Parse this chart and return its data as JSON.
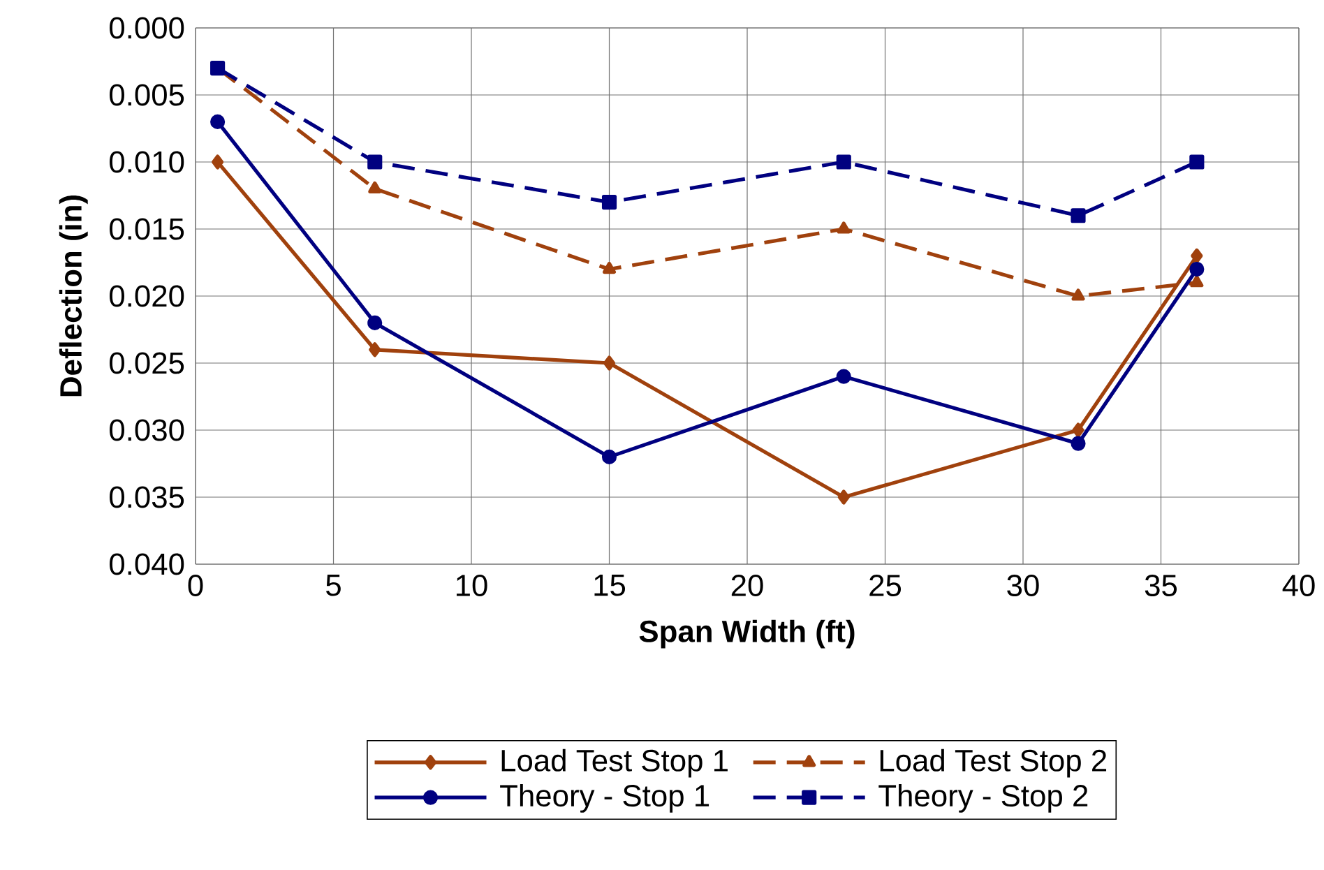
{
  "chart_data": {
    "type": "line",
    "xlabel": "Span Width (ft)",
    "ylabel": "Deflection (in)",
    "x": [
      0.8,
      6.5,
      15.0,
      23.5,
      32.0,
      36.3
    ],
    "series": [
      {
        "name": "Load Test Stop 1",
        "color": "#a0410d",
        "marker": "diamond",
        "line_style": "solid",
        "values": [
          0.01,
          0.024,
          0.025,
          0.035,
          0.03,
          0.017
        ]
      },
      {
        "name": "Load Test Stop 2",
        "color": "#a0410d",
        "marker": "triangle",
        "line_style": "dashed",
        "values": [
          0.003,
          0.012,
          0.018,
          0.015,
          0.02,
          0.019
        ]
      },
      {
        "name": "Theory - Stop 1",
        "color": "#000080",
        "marker": "circle",
        "line_style": "solid",
        "values": [
          0.007,
          0.022,
          0.032,
          0.026,
          0.031,
          0.018
        ]
      },
      {
        "name": "Theory - Stop 2",
        "color": "#000080",
        "marker": "square",
        "line_style": "dashed",
        "values": [
          0.003,
          0.01,
          0.013,
          0.01,
          0.014,
          0.01
        ]
      }
    ],
    "xlim": [
      0,
      40
    ],
    "xticks": [
      0,
      5,
      10,
      15,
      20,
      25,
      30,
      35,
      40
    ],
    "ylim": [
      0.04,
      0.0
    ],
    "yticks": [
      {
        "value": 0.0,
        "label": "0.000"
      },
      {
        "value": 0.005,
        "label": "0.005"
      },
      {
        "value": 0.01,
        "label": "0.010"
      },
      {
        "value": 0.015,
        "label": "0.015"
      },
      {
        "value": 0.02,
        "label": "0.020"
      },
      {
        "value": 0.025,
        "label": "0.025"
      },
      {
        "value": 0.03,
        "label": "0.030"
      },
      {
        "value": 0.035,
        "label": "0.035"
      },
      {
        "value": 0.04,
        "label": "0.040"
      }
    ],
    "grid": true,
    "legend": "bottom"
  }
}
